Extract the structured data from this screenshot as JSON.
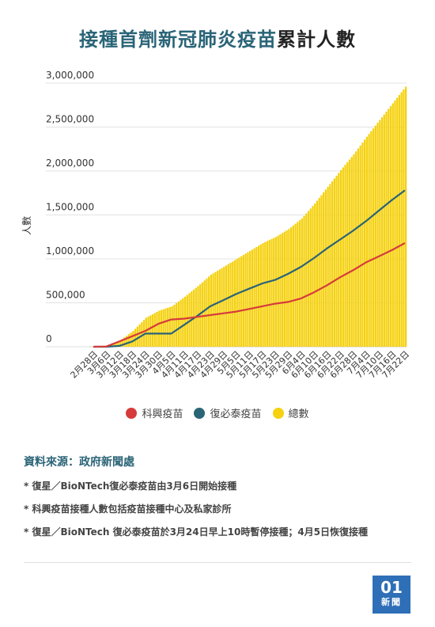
{
  "title": {
    "highlight": "接種首劑新冠肺炎疫苗",
    "rest": "累計人數"
  },
  "chart_data": {
    "type": "bar+line",
    "ylabel": "人數",
    "ylim": [
      0,
      3000000
    ],
    "yticks": [
      0,
      500000,
      1000000,
      1500000,
      2000000,
      2500000,
      3000000
    ],
    "ytick_labels": [
      "0",
      "500,000",
      "1,000,000",
      "1,500,000",
      "2,000,000",
      "2,500,000",
      "3,000,000"
    ],
    "xtick_labels": [
      "2月28日",
      "3月6日",
      "3月12日",
      "3月18日",
      "3月24日",
      "3月30日",
      "4月5日",
      "4月11日",
      "4月17日",
      "4月23日",
      "4月29日",
      "5月5日",
      "5月11日",
      "5月17日",
      "5月23日",
      "5月29日",
      "6月4日",
      "6月10日",
      "6月16日",
      "6月22日",
      "6月28日",
      "7月4日",
      "7月10日",
      "7月16日",
      "7月22日"
    ],
    "series": [
      {
        "name": "科興疫苗",
        "color": "#d63b3b",
        "kind": "line",
        "values": [
          0,
          2500,
          60000,
          120000,
          180000,
          260000,
          310000,
          320000,
          340000,
          360000,
          380000,
          400000,
          430000,
          460000,
          490000,
          510000,
          550000,
          620000,
          700000,
          790000,
          870000,
          960000,
          1030000,
          1100000,
          1180000
        ]
      },
      {
        "name": "復必泰疫苗",
        "color": "#2a6477",
        "kind": "line",
        "values": [
          0,
          0,
          10000,
          60000,
          150000,
          150000,
          150000,
          250000,
          350000,
          460000,
          530000,
          600000,
          660000,
          720000,
          760000,
          830000,
          910000,
          1010000,
          1120000,
          1220000,
          1320000,
          1430000,
          1550000,
          1670000,
          1780000
        ]
      },
      {
        "name": "總數",
        "color": "#f5d10f",
        "kind": "bar",
        "values": [
          0,
          2500,
          70000,
          180000,
          330000,
          410000,
          460000,
          570000,
          690000,
          820000,
          910000,
          1000000,
          1090000,
          1180000,
          1250000,
          1340000,
          1460000,
          1630000,
          1820000,
          2010000,
          2190000,
          2390000,
          2580000,
          2770000,
          2960000
        ]
      }
    ],
    "legend_position": "bottom",
    "grid": true
  },
  "source": "資料來源：政府新聞處",
  "notes": [
    "* 復星／BioNTech復必泰疫苗由3月6日開始接種",
    "* 科興疫苗接種人數包括疫苗接種中心及私家診所",
    "* 復星／BioNTech 復必泰疫苗於3月24日早上10時暫停接種；4月5日恢復接種"
  ],
  "logo": {
    "line1": "01",
    "line2": "新聞"
  }
}
